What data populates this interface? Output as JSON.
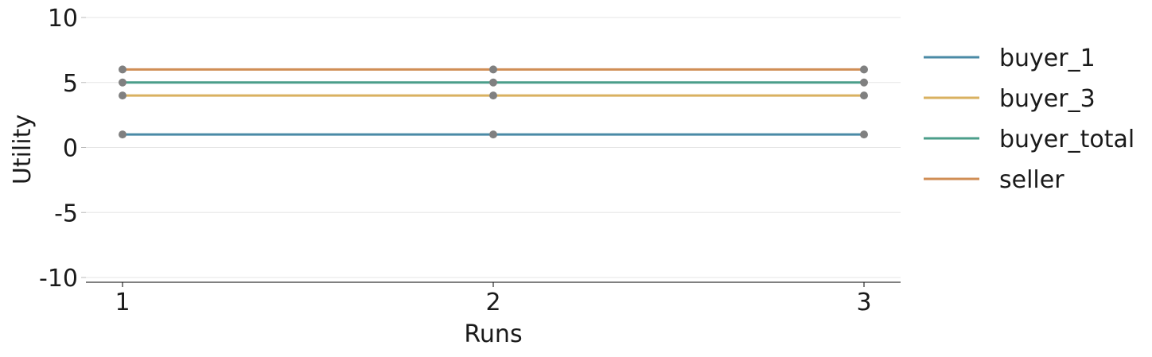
{
  "chart_data": {
    "type": "line",
    "xlabel": "Runs",
    "ylabel": "Utility",
    "x": [
      1,
      2,
      3
    ],
    "xticks": [
      "1",
      "2",
      "3"
    ],
    "ylim": [
      -10,
      10
    ],
    "yticks": [
      "-10",
      "-5",
      "0",
      "5",
      "10"
    ],
    "grid": "horizontal",
    "legend_position": "right",
    "marker_color": "#808080",
    "series": [
      {
        "name": "buyer_1",
        "color": "#4a8aa6",
        "values": [
          1,
          1,
          1
        ]
      },
      {
        "name": "buyer_3",
        "color": "#d9b160",
        "values": [
          4,
          4,
          4
        ]
      },
      {
        "name": "buyer_total",
        "color": "#4b9e8a",
        "values": [
          5,
          5,
          5
        ]
      },
      {
        "name": "seller",
        "color": "#d08e55",
        "values": [
          6,
          6,
          6
        ]
      }
    ]
  }
}
